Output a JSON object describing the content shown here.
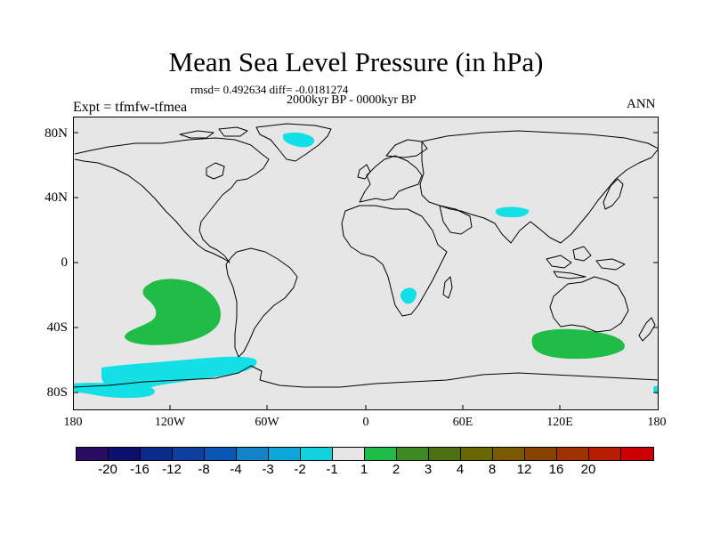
{
  "title": "Mean Sea Level Pressure (in hPa)",
  "stats": "rmsd= 0.492634 diff= -0.0181274",
  "period": "2000kyr BP - 0000kyr BP",
  "experiment": "Expt = tfmfw-tfmea",
  "season": "ANN",
  "lat_labels": [
    "80N",
    "40N",
    "0",
    "40S",
    "80S"
  ],
  "lon_labels": [
    "180",
    "120W",
    "60W",
    "0",
    "60E",
    "120E",
    "180"
  ],
  "colorbar": {
    "colors": [
      "#2a0b63",
      "#0c0f6e",
      "#0a2a8c",
      "#0b3fa0",
      "#0b56b5",
      "#1283c8",
      "#0ea6da",
      "#12d2e0",
      "#e6e6e6",
      "#1fbd47",
      "#3c8a22",
      "#4f7010",
      "#6a6600",
      "#7a5a00",
      "#8a4200",
      "#a03200",
      "#b81c00",
      "#cc0000"
    ],
    "labels": [
      "-20",
      "-16",
      "-12",
      "-8",
      "-4",
      "-3",
      "-2",
      "-1",
      "1",
      "2",
      "3",
      "4",
      "8",
      "12",
      "16",
      "20"
    ]
  },
  "colors": {
    "ocean_bg": "#e6e6e6",
    "negative_anomaly": "#12e0e6",
    "positive_anomaly": "#1fbd47"
  }
}
